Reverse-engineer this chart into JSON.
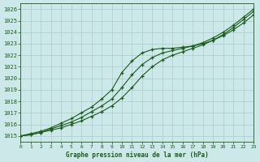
{
  "title": "Graphe pression niveau de la mer (hPa)",
  "bg_color": "#cce8e8",
  "grid_color": "#aacccc",
  "line_color": "#1a5c1a",
  "xlim": [
    0,
    23
  ],
  "ylim": [
    1014.5,
    1026.5
  ],
  "xticks": [
    0,
    1,
    2,
    3,
    4,
    5,
    6,
    7,
    8,
    9,
    10,
    11,
    12,
    13,
    14,
    15,
    16,
    17,
    18,
    19,
    20,
    21,
    22,
    23
  ],
  "yticks": [
    1015,
    1016,
    1017,
    1018,
    1019,
    1020,
    1021,
    1022,
    1023,
    1024,
    1025,
    1026
  ],
  "hours": [
    0,
    1,
    2,
    3,
    4,
    5,
    6,
    7,
    8,
    9,
    10,
    11,
    12,
    13,
    14,
    15,
    16,
    17,
    18,
    19,
    20,
    21,
    22,
    23
  ],
  "line1": [
    1015.0,
    1015.1,
    1015.3,
    1015.5,
    1015.7,
    1016.0,
    1016.3,
    1016.7,
    1017.1,
    1017.6,
    1018.3,
    1019.2,
    1020.2,
    1021.0,
    1021.6,
    1022.0,
    1022.3,
    1022.6,
    1022.9,
    1023.3,
    1023.8,
    1024.4,
    1025.1,
    1025.8
  ],
  "line2": [
    1015.0,
    1015.2,
    1015.4,
    1015.7,
    1016.1,
    1016.5,
    1017.0,
    1017.5,
    1018.2,
    1019.0,
    1020.5,
    1021.5,
    1022.2,
    1022.5,
    1022.6,
    1022.6,
    1022.7,
    1022.8,
    1023.0,
    1023.3,
    1023.7,
    1024.2,
    1024.8,
    1025.5
  ],
  "line3": [
    1015.0,
    1015.1,
    1015.3,
    1015.6,
    1015.9,
    1016.2,
    1016.6,
    1017.1,
    1017.6,
    1018.2,
    1019.2,
    1020.3,
    1021.2,
    1021.8,
    1022.2,
    1022.4,
    1022.6,
    1022.8,
    1023.1,
    1023.5,
    1024.0,
    1024.6,
    1025.3,
    1026.0
  ]
}
